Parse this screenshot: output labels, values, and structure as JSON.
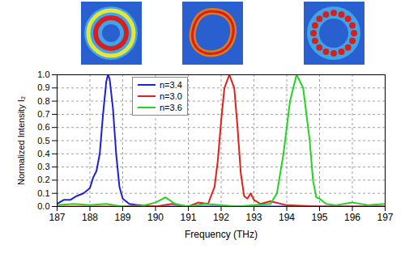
{
  "chart_data": {
    "type": "line",
    "x_label": "Frequency (THz)",
    "y_label": "Normalized Intensity I₂",
    "xlim": [
      187,
      197
    ],
    "xticks": [
      187,
      188,
      189,
      190,
      191,
      192,
      193,
      194,
      195,
      196,
      197
    ],
    "ylim": [
      0,
      1
    ],
    "yticks": [
      {
        "value": 0,
        "label": "0.0"
      },
      0.1,
      0.2,
      0.3,
      0.4,
      0.5,
      0.6,
      0.7,
      0.8,
      0.9,
      {
        "value": 1,
        "label": "1.0"
      }
    ],
    "grid": true,
    "legend": "top",
    "series": [
      {
        "name": "n=3.4",
        "color": "#1f1fd6",
        "x": [
          187.0,
          187.2,
          187.4,
          187.6,
          187.8,
          188.0,
          188.1,
          188.2,
          188.3,
          188.4,
          188.5,
          188.55,
          188.6,
          188.7,
          188.8,
          188.9,
          189.0,
          189.2,
          189.5,
          190.0,
          191.0,
          192.0,
          193.0,
          194.0,
          195.0,
          196.0,
          197.0
        ],
        "values": [
          0.02,
          0.05,
          0.05,
          0.08,
          0.1,
          0.14,
          0.22,
          0.27,
          0.4,
          0.7,
          0.95,
          1.0,
          0.97,
          0.75,
          0.4,
          0.15,
          0.06,
          0.02,
          0.01,
          0.0,
          0.0,
          0.0,
          0.0,
          0.0,
          0.0,
          0.0,
          0.0
        ]
      },
      {
        "name": "n=3.0",
        "color": "#e0201b",
        "x": [
          187.0,
          188.0,
          189.0,
          189.5,
          190.0,
          190.5,
          191.0,
          191.3,
          191.6,
          191.8,
          191.9,
          192.0,
          192.1,
          192.25,
          192.4,
          192.5,
          192.6,
          192.7,
          192.8,
          192.9,
          193.0,
          193.2,
          193.5,
          194.0,
          195.0,
          196.0,
          197.0
        ],
        "values": [
          0.0,
          0.0,
          0.0,
          0.01,
          0.0,
          0.02,
          0.0,
          0.03,
          0.02,
          0.15,
          0.35,
          0.65,
          0.9,
          1.0,
          0.9,
          0.6,
          0.25,
          0.08,
          0.06,
          0.1,
          0.05,
          0.02,
          0.04,
          0.01,
          0.0,
          0.0,
          0.0
        ]
      },
      {
        "name": "n=3.6",
        "color": "#22d422",
        "x": [
          187.0,
          187.5,
          188.0,
          188.5,
          189.0,
          189.5,
          190.0,
          190.3,
          190.6,
          191.0,
          191.5,
          192.0,
          192.5,
          193.0,
          193.5,
          193.7,
          193.9,
          194.1,
          194.3,
          194.5,
          194.7,
          194.8,
          194.9,
          195.0,
          195.2,
          195.5,
          196.0,
          196.5,
          197.0
        ],
        "values": [
          0.01,
          0.02,
          0.01,
          0.02,
          0.0,
          0.0,
          0.03,
          0.07,
          0.02,
          0.0,
          0.02,
          0.01,
          0.0,
          0.01,
          0.02,
          0.1,
          0.4,
          0.8,
          1.0,
          0.9,
          0.5,
          0.2,
          0.07,
          0.06,
          0.02,
          0.01,
          0.03,
          0.01,
          0.02
        ]
      }
    ]
  }
}
